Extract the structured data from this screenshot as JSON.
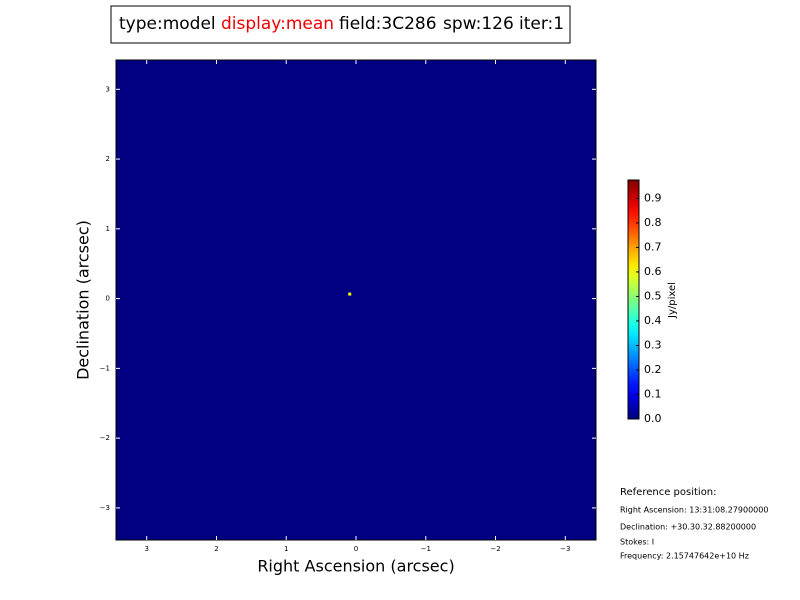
{
  "chart_data": {
    "type": "image",
    "header": {
      "type": "type:model",
      "display": "display:mean",
      "field": "field:3C286",
      "spw": "spw:126",
      "iter": "iter:1"
    },
    "xlabel": "Right Ascension (arcsec)",
    "ylabel": "Declination (arcsec)",
    "xlim": [
      3.44,
      -3.44
    ],
    "ylim": [
      -3.46,
      3.42
    ],
    "xticks": [
      3,
      2,
      1,
      0,
      {
        "value": -1,
        "label": "−1"
      },
      {
        "value": -2,
        "label": "−2"
      },
      {
        "value": -3,
        "label": "−3"
      }
    ],
    "yticks": [
      {
        "value": -3,
        "label": "−3"
      },
      {
        "value": -2,
        "label": "−2"
      },
      {
        "value": -1,
        "label": "−1"
      },
      0,
      1,
      2,
      3
    ],
    "colormap": "jet",
    "x": [
      0.09
    ],
    "y": [
      0.065
    ],
    "values": [
      0.6
    ],
    "colorbar": {
      "label": "Jy/pixel",
      "clim": [
        0,
        0.975
      ],
      "ticks": [
        {
          "value": 0,
          "label": "0.0"
        },
        0.1,
        0.2,
        0.3,
        0.4,
        0.5,
        0.6,
        0.7,
        0.8,
        0.9
      ]
    },
    "reference": {
      "title": "Reference position:",
      "lines": [
        "Right Ascension: 13:31:08.27900000",
        "Declination: +30.30.32.88200000",
        "Stokes: I",
        "Frequency: 2.15747642e+10 Hz"
      ]
    }
  }
}
